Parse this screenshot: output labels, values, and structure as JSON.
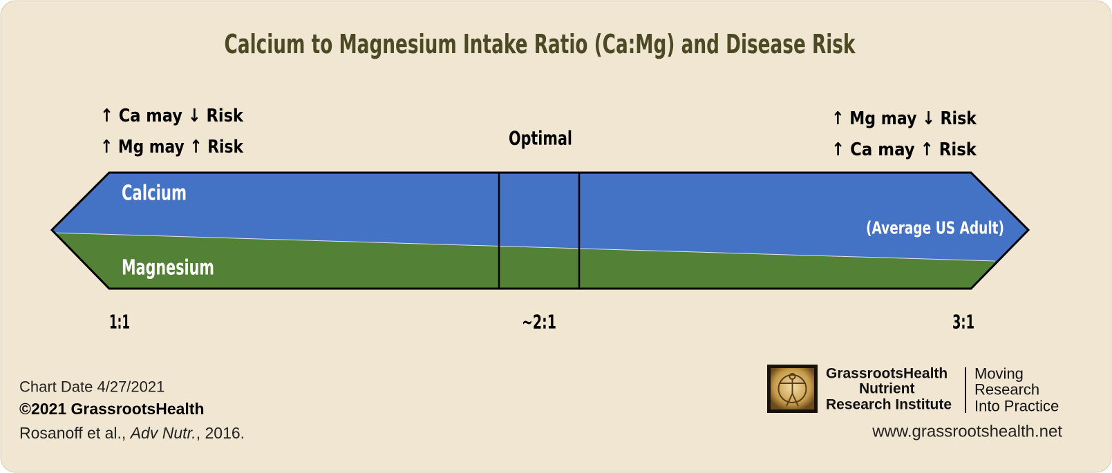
{
  "title": "Calcium to Magnesium Intake Ratio (Ca:Mg) and Disease Risk",
  "left_note": {
    "lines": [
      "↑ Ca may ↓ Risk",
      "↑ Mg may ↑ Risk"
    ]
  },
  "center_note": "Optimal",
  "right_note": {
    "lines": [
      "↑ Mg may ↓ Risk",
      "↑ Ca may ↑ Risk"
    ]
  },
  "bands": {
    "top": "Calcium",
    "bottom": "Magnesium",
    "annotation": "(Average US Adult)"
  },
  "scale": [
    "1:1",
    "~2:1",
    "3:1"
  ],
  "footer": {
    "chart_date": "Chart Date 4/27/2021",
    "copyright": "©2021 GrassrootsHealth",
    "citation": [
      "Rosanoff et al., ",
      "Adv Nutr.",
      ", 2016."
    ]
  },
  "logo": {
    "name": [
      "GrassrootsHealth",
      "Nutrient",
      "Research Institute"
    ],
    "tagline": [
      "Moving",
      "Research",
      "Into Practice"
    ],
    "url": "www.grassrootshealth.net"
  }
}
